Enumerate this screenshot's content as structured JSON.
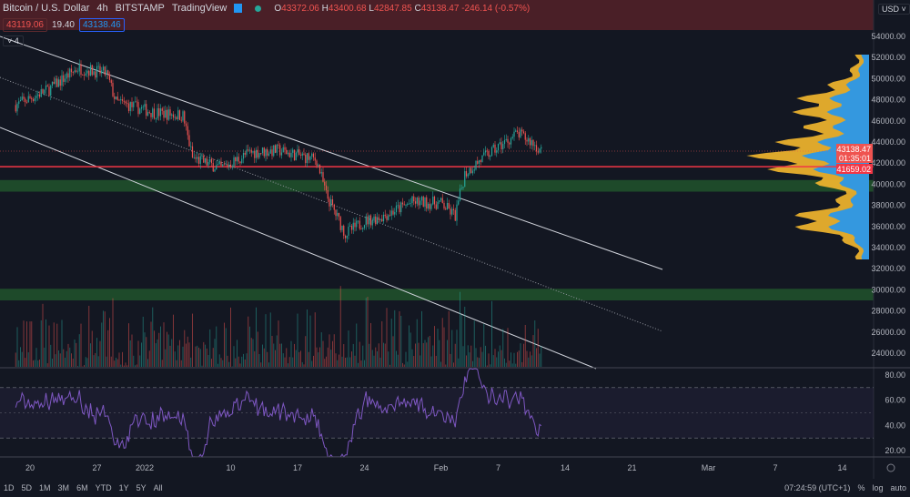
{
  "header": {
    "symbol": "Bitcoin / U.S. Dollar",
    "interval": "4h",
    "exchange": "BITSTAMP",
    "source": "TradingView",
    "ohlc": {
      "o_label": "O",
      "o": "43372.06",
      "h_label": "H",
      "h": "43400.68",
      "l_label": "L",
      "l": "42847.85",
      "c_label": "C",
      "c": "43138.47",
      "change": "-246.14 (-0.57%)"
    },
    "bid": "43119.06",
    "spread": "19.40",
    "ask": "43138.46",
    "indicators_count": "4"
  },
  "currency": "USD",
  "price_labels": {
    "current": "43138.47",
    "countdown": "01:35:01",
    "line": "41659.02"
  },
  "bottom": {
    "ranges": [
      "1D",
      "5D",
      "1M",
      "3M",
      "6M",
      "YTD",
      "1Y",
      "5Y",
      "All"
    ],
    "time": "07:24:59 (UTC+1)",
    "percent": "%",
    "log": "log",
    "auto": "auto"
  },
  "colors": {
    "up": "#26a69a",
    "down": "#ef5350",
    "resistance_zone": "#4a1f27",
    "support_zone": "#1e4a2a",
    "rsi": "#7e57c2",
    "vp_up": "#2196f3",
    "vp_down": "#f5b82e"
  },
  "chart_data": {
    "type": "candlestick",
    "price_axis": {
      "ticks": [
        24000,
        26000,
        28000,
        30000,
        32000,
        34000,
        36000,
        38000,
        40000,
        42000,
        44000,
        46000,
        48000,
        50000,
        52000,
        54000
      ],
      "tick_labels": [
        "24000.00",
        "26000.00",
        "28000.00",
        "30000.00",
        "32000.00",
        "34000.00",
        "36000.00",
        "38000.00",
        "40000.00",
        "42000.00",
        "44000.00",
        "46000.00",
        "48000.00",
        "50000.00",
        "52000.00",
        "54000.00"
      ]
    },
    "time_axis": {
      "tick_labels": [
        "20",
        "27",
        "2022",
        "10",
        "17",
        "24",
        "Feb",
        "7",
        "14",
        "21",
        "Mar",
        "7",
        "14"
      ],
      "tick_days": [
        0,
        7,
        12,
        21,
        28,
        35,
        43,
        49,
        56,
        63,
        71,
        78,
        85
      ]
    },
    "price_path": [
      [
        -1.5,
        47500
      ],
      [
        2,
        49000
      ],
      [
        5,
        51000
      ],
      [
        8,
        50500
      ],
      [
        9,
        47800
      ],
      [
        13,
        46800
      ],
      [
        16,
        46500
      ],
      [
        17,
        42500
      ],
      [
        20,
        41500
      ],
      [
        23,
        43000
      ],
      [
        26,
        43200
      ],
      [
        30,
        42300
      ],
      [
        31,
        39000
      ],
      [
        33,
        35300
      ],
      [
        35,
        36500
      ],
      [
        37,
        37000
      ],
      [
        40,
        38300
      ],
      [
        43,
        38200
      ],
      [
        44.5,
        37000
      ],
      [
        45.5,
        41000
      ],
      [
        47,
        42200
      ],
      [
        49,
        43500
      ],
      [
        51,
        44800
      ],
      [
        52.5,
        44000
      ],
      [
        53.5,
        43138
      ]
    ],
    "zones": {
      "resistance": [
        [
          49400,
          45200
        ],
        [
          54600,
          58000
        ]
      ],
      "support": [
        [
          40400,
          39300
        ],
        [
          30100,
          29000
        ]
      ],
      "horizontal_line": 41659.02
    },
    "rsi_axis": {
      "ticks": [
        20,
        40,
        60,
        80
      ],
      "tick_labels": [
        "20.00",
        "40.00",
        "60.00",
        "80.00"
      ],
      "bands": [
        30,
        70
      ]
    }
  }
}
